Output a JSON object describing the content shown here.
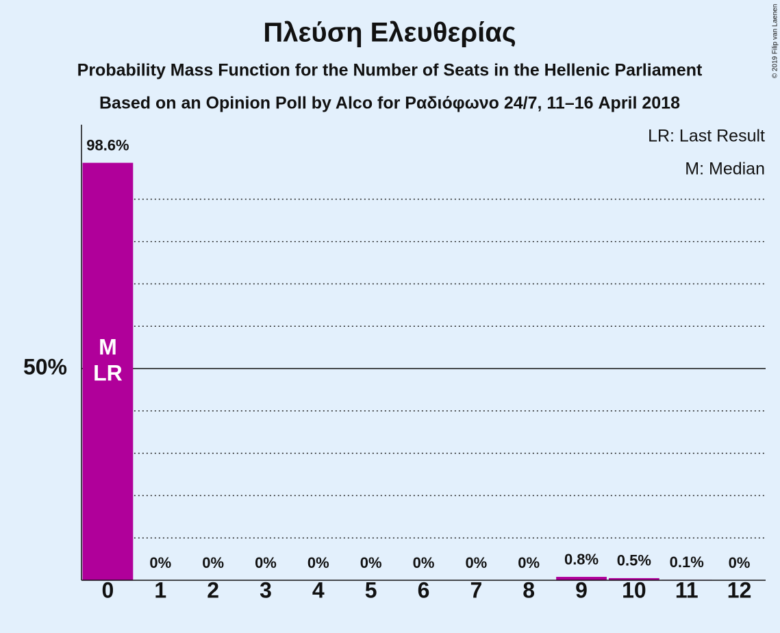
{
  "chart_data": {
    "type": "bar",
    "title": "Πλεύση Ελευθερίας",
    "subtitle": "Probability Mass Function for the Number of Seats in the Hellenic Parliament",
    "subtitle2": "Based on an Opinion Poll by Alco for Ραδιόφωνο 24/7, 11–16 April 2018",
    "legend": [
      "LR: Last Result",
      "M: Median"
    ],
    "copyright": "© 2019 Filip van Laenen",
    "categories": [
      "0",
      "1",
      "2",
      "3",
      "4",
      "5",
      "6",
      "7",
      "8",
      "9",
      "10",
      "11",
      "12"
    ],
    "values": [
      98.6,
      0,
      0,
      0,
      0,
      0,
      0,
      0,
      0,
      0.8,
      0.5,
      0.1,
      0
    ],
    "value_labels": [
      "98.6%",
      "0%",
      "0%",
      "0%",
      "0%",
      "0%",
      "0%",
      "0%",
      "0%",
      "0.8%",
      "0.5%",
      "0.1%",
      "0%"
    ],
    "color": "#b0009a",
    "median": 0,
    "median_label": "M",
    "last_result": 0,
    "last_result_label": "LR",
    "ylim": [
      0,
      100
    ],
    "yticks": [
      {
        "value": 50,
        "label": "50%"
      }
    ],
    "minor_gridlines": [
      10,
      20,
      30,
      40,
      60,
      70,
      80,
      90
    ],
    "grid": true
  }
}
